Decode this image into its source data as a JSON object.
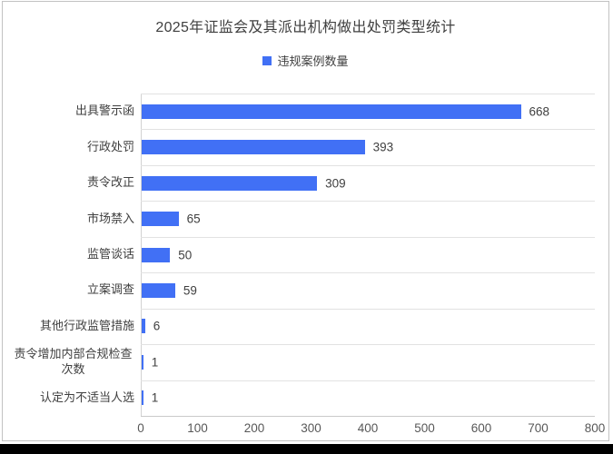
{
  "window": {
    "background_color": "#ffffff",
    "border_color": "#c2c2c2",
    "bottom_band_color": "#000000"
  },
  "header": {
    "title": "2025年证监会及其派出机构做出处罚类型统计"
  },
  "legend": {
    "label": "违规案例数量",
    "swatch_color": "#4170f5",
    "position": "top-center"
  },
  "chart_data": {
    "type": "bar",
    "orientation": "horizontal",
    "title": "2025年证监会及其派出机构做出处罚类型统计",
    "series_name": "违规案例数量",
    "categories": [
      "出具警示函",
      "行政处罚",
      "责令改正",
      "市场禁入",
      "监管谈话",
      "立案调查",
      "其他行政监管措施",
      "责令增加内部合规检查次数",
      "认定为不适当人选"
    ],
    "values": [
      668,
      393,
      309,
      65,
      50,
      59,
      6,
      1,
      1
    ],
    "xlabel": "",
    "ylabel": "",
    "xlim": [
      0,
      800
    ],
    "x_ticks": [
      0,
      100,
      200,
      300,
      400,
      500,
      600,
      700,
      800
    ],
    "grid": "horizontal-row-separators-only",
    "legend_position": "top",
    "bar_color": "#4170f5",
    "data_labels": true,
    "data_label_color": "#404040"
  }
}
